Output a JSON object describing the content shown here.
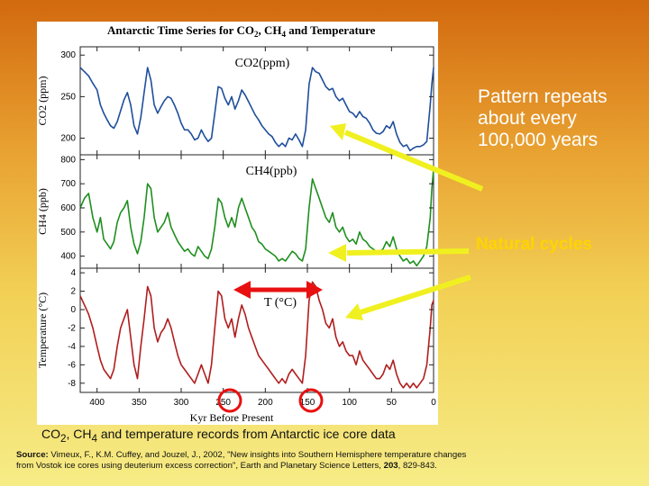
{
  "chart_data": {
    "type": "line",
    "title": "Antarctic Time Series for CO2, CH4 and Temperature",
    "xlabel": "Kyr Before Present",
    "x_ticks": [
      400,
      350,
      300,
      250,
      200,
      150,
      100,
      50,
      0
    ],
    "xlim": [
      420,
      0
    ],
    "panels": [
      {
        "name": "CO2(ppm)",
        "ylabel": "CO2 (ppm)",
        "y_ticks": [
          200,
          250,
          300
        ],
        "ylim": [
          180,
          310
        ],
        "color": "#1f4e9c",
        "x": [
          420,
          415,
          410,
          405,
          400,
          396,
          392,
          388,
          384,
          380,
          376,
          372,
          368,
          364,
          360,
          356,
          352,
          348,
          344,
          340,
          336,
          332,
          328,
          324,
          320,
          316,
          312,
          308,
          304,
          300,
          296,
          292,
          288,
          284,
          280,
          276,
          272,
          268,
          264,
          260,
          256,
          252,
          248,
          244,
          240,
          236,
          232,
          228,
          224,
          220,
          216,
          212,
          208,
          204,
          200,
          196,
          192,
          188,
          184,
          180,
          176,
          172,
          168,
          164,
          160,
          156,
          152,
          148,
          144,
          140,
          136,
          132,
          128,
          124,
          120,
          116,
          112,
          108,
          104,
          100,
          96,
          92,
          88,
          84,
          80,
          76,
          72,
          68,
          64,
          60,
          56,
          52,
          48,
          44,
          40,
          36,
          32,
          28,
          24,
          20,
          16,
          12,
          8,
          4,
          2,
          0
        ],
        "values": [
          285,
          280,
          275,
          266,
          258,
          240,
          230,
          222,
          215,
          212,
          220,
          233,
          246,
          255,
          240,
          215,
          205,
          225,
          255,
          285,
          270,
          240,
          230,
          238,
          245,
          250,
          248,
          240,
          230,
          218,
          210,
          210,
          205,
          198,
          200,
          210,
          202,
          196,
          200,
          230,
          262,
          260,
          248,
          240,
          250,
          235,
          245,
          258,
          252,
          244,
          236,
          228,
          222,
          215,
          210,
          205,
          202,
          195,
          190,
          194,
          190,
          200,
          198,
          205,
          198,
          190,
          210,
          265,
          285,
          280,
          278,
          270,
          262,
          258,
          260,
          250,
          245,
          248,
          240,
          232,
          230,
          225,
          232,
          226,
          224,
          218,
          210,
          206,
          205,
          208,
          215,
          212,
          220,
          205,
          195,
          190,
          192,
          185,
          188,
          190,
          190,
          192,
          196,
          240,
          265,
          285
        ]
      },
      {
        "name": "CH4(ppb)",
        "ylabel": "CH4 (ppb)",
        "y_ticks": [
          400,
          500,
          600,
          700,
          800
        ],
        "ylim": [
          350,
          820
        ],
        "color": "#1f8f1f",
        "x": [
          420,
          415,
          410,
          405,
          400,
          396,
          392,
          388,
          384,
          380,
          376,
          372,
          368,
          364,
          360,
          356,
          352,
          348,
          344,
          340,
          336,
          332,
          328,
          324,
          320,
          316,
          312,
          308,
          304,
          300,
          296,
          292,
          288,
          284,
          280,
          276,
          272,
          268,
          264,
          260,
          256,
          252,
          248,
          244,
          240,
          236,
          232,
          228,
          224,
          220,
          216,
          212,
          208,
          204,
          200,
          196,
          192,
          188,
          184,
          180,
          176,
          172,
          168,
          164,
          160,
          156,
          152,
          148,
          144,
          140,
          136,
          132,
          128,
          124,
          120,
          116,
          112,
          108,
          104,
          100,
          96,
          92,
          88,
          84,
          80,
          76,
          72,
          68,
          64,
          60,
          56,
          52,
          48,
          44,
          40,
          36,
          32,
          28,
          24,
          20,
          16,
          12,
          8,
          4,
          2,
          0
        ],
        "values": [
          600,
          640,
          660,
          560,
          500,
          560,
          470,
          450,
          430,
          460,
          540,
          580,
          600,
          630,
          520,
          450,
          410,
          460,
          560,
          700,
          680,
          560,
          500,
          520,
          540,
          580,
          520,
          490,
          460,
          440,
          420,
          430,
          410,
          400,
          440,
          420,
          400,
          390,
          430,
          520,
          640,
          620,
          560,
          520,
          560,
          520,
          600,
          640,
          600,
          560,
          520,
          500,
          460,
          450,
          430,
          420,
          410,
          400,
          380,
          390,
          380,
          400,
          420,
          410,
          390,
          380,
          430,
          600,
          720,
          680,
          640,
          600,
          560,
          540,
          580,
          520,
          500,
          520,
          480,
          460,
          470,
          450,
          500,
          470,
          460,
          440,
          430,
          420,
          420,
          430,
          460,
          440,
          480,
          430,
          400,
          380,
          390,
          370,
          380,
          360,
          380,
          400,
          440,
          560,
          680,
          760
        ]
      },
      {
        "name": "T (°C)",
        "ylabel": "Temperature (°C)",
        "y_ticks": [
          -8,
          -6,
          -4,
          -2,
          0,
          2,
          4
        ],
        "ylim": [
          -9,
          4.5
        ],
        "color": "#b01e1e",
        "x": [
          420,
          415,
          410,
          405,
          400,
          396,
          392,
          388,
          384,
          380,
          376,
          372,
          368,
          364,
          360,
          356,
          352,
          348,
          344,
          340,
          336,
          332,
          328,
          324,
          320,
          316,
          312,
          308,
          304,
          300,
          296,
          292,
          288,
          284,
          280,
          276,
          272,
          268,
          264,
          260,
          256,
          252,
          248,
          244,
          240,
          236,
          232,
          228,
          224,
          220,
          216,
          212,
          208,
          204,
          200,
          196,
          192,
          188,
          184,
          180,
          176,
          172,
          168,
          164,
          160,
          156,
          152,
          148,
          144,
          140,
          136,
          132,
          128,
          124,
          120,
          116,
          112,
          108,
          104,
          100,
          96,
          92,
          88,
          84,
          80,
          76,
          72,
          68,
          64,
          60,
          56,
          52,
          48,
          44,
          40,
          36,
          32,
          28,
          24,
          20,
          16,
          12,
          8,
          4,
          2,
          0
        ],
        "values": [
          1.5,
          0.5,
          -0.5,
          -2,
          -4,
          -5.5,
          -6.5,
          -7,
          -7.5,
          -6.5,
          -4,
          -2,
          -1,
          0,
          -3,
          -6,
          -7.5,
          -4,
          -1,
          2.5,
          1.5,
          -2,
          -3.5,
          -2.5,
          -2,
          -1,
          -2,
          -3.5,
          -5,
          -6,
          -6.5,
          -7,
          -7.5,
          -8,
          -7,
          -6,
          -7,
          -8,
          -6,
          -2,
          2,
          1.5,
          -1,
          -2,
          -1,
          -3,
          -1,
          0.5,
          -0.5,
          -2,
          -3,
          -4,
          -5,
          -5.5,
          -6,
          -6.5,
          -7,
          -7.5,
          -8,
          -7.5,
          -8,
          -7,
          -6.5,
          -7,
          -7.5,
          -8,
          -5,
          1,
          3,
          2.5,
          1,
          0,
          -1.5,
          -2,
          -1,
          -3,
          -4,
          -3.5,
          -4.5,
          -5,
          -5,
          -6,
          -4.5,
          -5.5,
          -6,
          -6.5,
          -7,
          -7.5,
          -7.5,
          -7,
          -6,
          -6.5,
          -5.5,
          -7,
          -8,
          -8.5,
          -8,
          -8.5,
          -8,
          -8.5,
          -8,
          -7.5,
          -6,
          -2,
          0.5,
          1
        ]
      }
    ]
  },
  "annotations": {
    "pattern_note": "Pattern repeats about every 100,000 years",
    "natural_note": "Natural cycles"
  },
  "caption": {
    "p1": "CO",
    "sub1": "2",
    "p2": ", CH",
    "sub2": "4",
    "p3": " and temperature records from Antarctic ice core data"
  },
  "source": {
    "label": "Source:",
    "text": " Vimeux, F., K.M. Cuffey, and Jouzel, J., 2002, \"New insights into Southern Hemisphere temperature changes from Vostok ice cores using deuterium excess correction\", Earth and Planetary Science Letters, ",
    "volume": "203",
    "pages": ", 829-843."
  },
  "colors": {
    "arrow": "#f0f020",
    "circle": "#e81010"
  }
}
